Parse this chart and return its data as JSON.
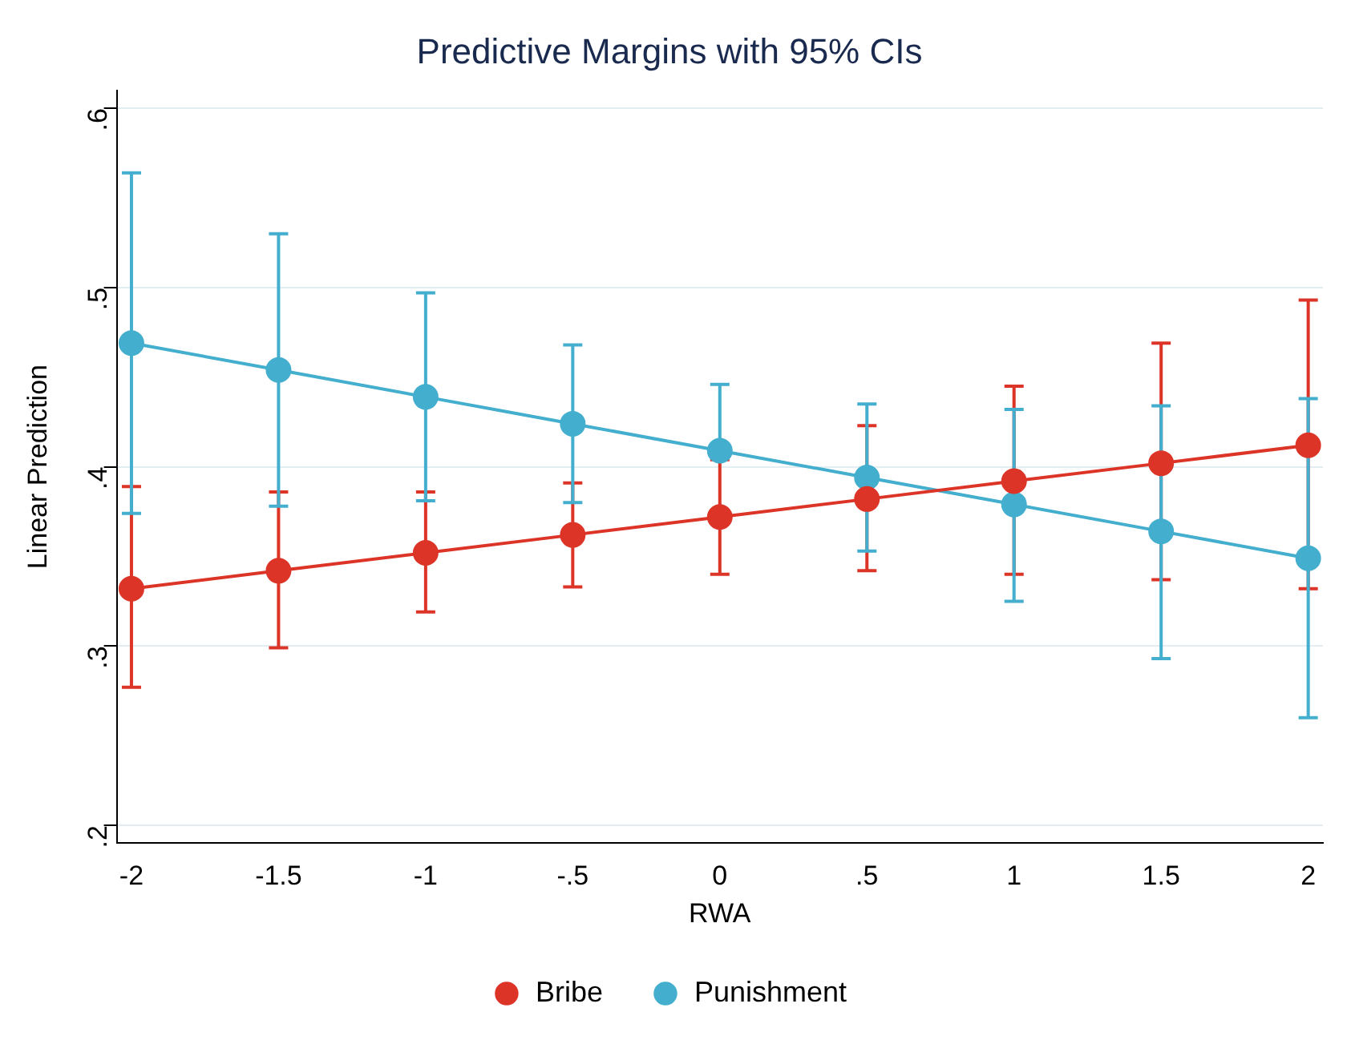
{
  "chart_data": {
    "type": "line",
    "title": "Predictive Margins with 95% CIs",
    "xlabel": "RWA",
    "ylabel": "Linear Prediction",
    "x": [
      -2,
      -1.5,
      -1,
      -0.5,
      0,
      0.5,
      1,
      1.5,
      2
    ],
    "series": [
      {
        "name": "Bribe",
        "color": "#dd3428",
        "values": [
          0.332,
          0.342,
          0.352,
          0.362,
          0.372,
          0.382,
          0.392,
          0.402,
          0.412
        ],
        "errors": [
          [
            0.277,
            0.389
          ],
          [
            0.299,
            0.386
          ],
          [
            0.319,
            0.386
          ],
          [
            0.333,
            0.391
          ],
          [
            0.34,
            0.404
          ],
          [
            0.342,
            0.423
          ],
          [
            0.34,
            0.445
          ],
          [
            0.337,
            0.469
          ],
          [
            0.332,
            0.493
          ]
        ]
      },
      {
        "name": "Punishment",
        "color": "#43aecd",
        "values": [
          0.469,
          0.454,
          0.439,
          0.424,
          0.409,
          0.394,
          0.379,
          0.364,
          0.349
        ],
        "errors": [
          [
            0.374,
            0.564
          ],
          [
            0.378,
            0.53
          ],
          [
            0.381,
            0.497
          ],
          [
            0.38,
            0.468
          ],
          [
            0.409,
            0.446
          ],
          [
            0.353,
            0.435
          ],
          [
            0.325,
            0.432
          ],
          [
            0.293,
            0.434
          ],
          [
            0.26,
            0.438
          ]
        ]
      }
    ],
    "xlim": [
      -2.05,
      2.05
    ],
    "xticks": [
      -2,
      {
        "value": -1.5,
        "label": "-1.5"
      },
      -1,
      {
        "value": -0.5,
        "label": "-.5"
      },
      0,
      {
        "value": 0.5,
        "label": ".5"
      },
      1,
      1.5,
      2
    ],
    "ylim": [
      0.19,
      0.61
    ],
    "yticks": [
      {
        "value": 0.2,
        "label": ".2"
      },
      {
        "value": 0.3,
        "label": ".3"
      },
      {
        "value": 0.4,
        "label": ".4"
      },
      {
        "value": 0.5,
        "label": ".5"
      },
      {
        "value": 0.6,
        "label": ".6"
      }
    ],
    "grid": "y",
    "legend": "bottom",
    "marker": "circle",
    "line_style": "solid"
  }
}
